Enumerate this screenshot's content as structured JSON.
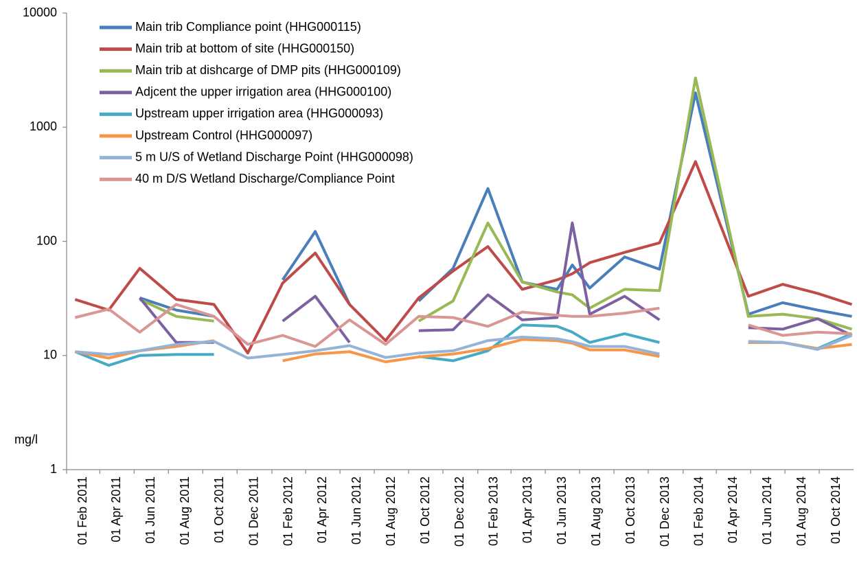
{
  "chart_data": {
    "type": "line",
    "y_label": "mg/l",
    "log_y": true,
    "ylim": [
      1,
      10000
    ],
    "yticks": [
      1,
      10,
      100,
      1000,
      10000
    ],
    "xlim": [
      "2011-02-01",
      "2014-12-01"
    ],
    "xticks": [
      {
        "value": "2011-02-01",
        "label": "01 Feb 2011"
      },
      {
        "value": "2011-04-01",
        "label": "01 Apr 2011"
      },
      {
        "value": "2011-06-01",
        "label": "01 Jun 2011"
      },
      {
        "value": "2011-08-01",
        "label": "01 Aug 2011"
      },
      {
        "value": "2011-10-01",
        "label": "01 Oct 2011"
      },
      {
        "value": "2011-12-01",
        "label": "01 Dec 2011"
      },
      {
        "value": "2012-02-01",
        "label": "01 Feb 2012"
      },
      {
        "value": "2012-04-01",
        "label": "01 Apr 2012"
      },
      {
        "value": "2012-06-01",
        "label": "01 Jun 2012"
      },
      {
        "value": "2012-08-01",
        "label": "01 Aug 2012"
      },
      {
        "value": "2012-10-01",
        "label": "01 Oct 2012"
      },
      {
        "value": "2012-12-01",
        "label": "01 Dec 2012"
      },
      {
        "value": "2013-02-01",
        "label": "01 Feb 2013"
      },
      {
        "value": "2013-04-01",
        "label": "01 Apr 2013"
      },
      {
        "value": "2013-06-01",
        "label": "01 Jun 2013"
      },
      {
        "value": "2013-08-01",
        "label": "01 Aug 2013"
      },
      {
        "value": "2013-10-01",
        "label": "01 Oct 2013"
      },
      {
        "value": "2013-12-01",
        "label": "01 Dec 2013"
      },
      {
        "value": "2014-02-01",
        "label": "01 Feb 2014"
      },
      {
        "value": "2014-04-01",
        "label": "01 Apr 2014"
      },
      {
        "value": "2014-06-01",
        "label": "01 Jun 2014"
      },
      {
        "value": "2014-08-01",
        "label": "01 Aug 2014"
      },
      {
        "value": "2014-10-01",
        "label": "01 Oct 2014"
      }
    ],
    "x": [
      "2011-02-16",
      "2011-04-17",
      "2011-06-11",
      "2011-08-15",
      "2011-10-21",
      "2011-12-20",
      "2012-02-20",
      "2012-04-18",
      "2012-06-18",
      "2012-08-21",
      "2012-10-19",
      "2012-12-19",
      "2013-02-19",
      "2013-04-21",
      "2013-06-22",
      "2013-07-19",
      "2013-08-19",
      "2013-10-20",
      "2013-12-21",
      "2014-02-23",
      "2014-05-28",
      "2014-07-28",
      "2014-09-28",
      "2014-11-28"
    ],
    "series": [
      {
        "name": "Main trib Compliance point (HHG000115)",
        "color": "#4a7ebb",
        "values": [
          null,
          null,
          32,
          25,
          22,
          null,
          46,
          122,
          28,
          null,
          30,
          58,
          290,
          44,
          38,
          62,
          39,
          73,
          57,
          2000,
          23,
          29,
          25,
          22
        ]
      },
      {
        "name": "Main trib at bottom of site (HHG000150)",
        "color": "#be4b48",
        "values": [
          31,
          25,
          58,
          31,
          28,
          10.5,
          43,
          79,
          28,
          13.5,
          32,
          55,
          90,
          38,
          46,
          52,
          65,
          80,
          97,
          500,
          33,
          42,
          35,
          28
        ]
      },
      {
        "name": "Main trib at dishcarge of DMP pits (HHG000109)",
        "color": "#98b954",
        "values": [
          null,
          null,
          31,
          22,
          20,
          null,
          null,
          null,
          null,
          null,
          20,
          30,
          145,
          44,
          36,
          34,
          26,
          38,
          37,
          2700,
          22,
          23,
          21,
          17
        ]
      },
      {
        "name": "Adjcent the upper irrigation area (HHG000100)",
        "color": "#7d60a0",
        "values": [
          null,
          null,
          32,
          13,
          13,
          null,
          20,
          33,
          13,
          null,
          16.5,
          16.8,
          34,
          20.5,
          21.5,
          145,
          23,
          33,
          20.5,
          null,
          17.5,
          17,
          21,
          15
        ]
      },
      {
        "name": "Upstream upper irrigation area (HHG000093)",
        "color": "#46aac5",
        "values": [
          10.8,
          8.2,
          10,
          10.2,
          10.2,
          null,
          null,
          null,
          null,
          null,
          9.8,
          9,
          11,
          18.5,
          18,
          16,
          13,
          15.5,
          13,
          null,
          13,
          13,
          11.5,
          15.5
        ]
      },
      {
        "name": "Upstream Control (HHG000097)",
        "color": "#f79646",
        "values": [
          10.8,
          9.5,
          11,
          12,
          13.5,
          null,
          9,
          10.3,
          10.8,
          8.8,
          9.7,
          10.3,
          11.5,
          13.8,
          13.5,
          12.8,
          11.2,
          11.2,
          9.8,
          null,
          13,
          13,
          11.5,
          12.5
        ]
      },
      {
        "name": "5 m U/S of Wetland Discharge Point (HHG000098)",
        "color": "#95b3d7",
        "values": [
          10.8,
          10.2,
          11,
          12.5,
          13.3,
          9.5,
          10.2,
          11,
          12.2,
          9.6,
          10.5,
          11,
          13.5,
          14.5,
          14,
          13.2,
          12,
          12,
          10.3,
          null,
          13.3,
          13,
          11.3,
          15
        ]
      },
      {
        "name": "40 m D/S  Wetland Discharge/Compliance Point",
        "color": "#d99694",
        "values": [
          21.5,
          25.5,
          16,
          28,
          22,
          12.5,
          15,
          12,
          20.5,
          12.5,
          22,
          21.5,
          18,
          24,
          22.5,
          22,
          22,
          23.5,
          26,
          null,
          18.5,
          15,
          16,
          15.5
        ]
      }
    ]
  }
}
